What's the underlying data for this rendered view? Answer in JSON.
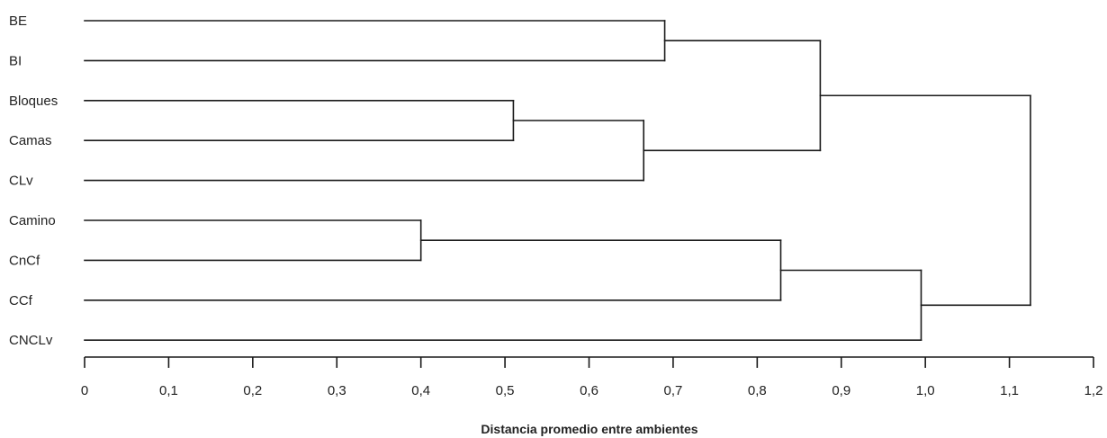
{
  "chart_data": {
    "type": "dendrogram",
    "xlabel": "Distancia promedio entre ambientes",
    "xlim": [
      0,
      1.2
    ],
    "x_ticks": [
      {
        "value": 0,
        "label": "0"
      },
      {
        "value": 0.1,
        "label": "0,1"
      },
      {
        "value": 0.2,
        "label": "0,2"
      },
      {
        "value": 0.3,
        "label": "0,3"
      },
      {
        "value": 0.4,
        "label": "0,4"
      },
      {
        "value": 0.5,
        "label": "0,5"
      },
      {
        "value": 0.6,
        "label": "0,6"
      },
      {
        "value": 0.7,
        "label": "0,7"
      },
      {
        "value": 0.8,
        "label": "0,8"
      },
      {
        "value": 0.9,
        "label": "0,9"
      },
      {
        "value": 1.0,
        "label": "1,0"
      },
      {
        "value": 1.1,
        "label": "1,1"
      },
      {
        "value": 1.2,
        "label": "1,2"
      }
    ],
    "leaves": [
      "BE",
      "BI",
      "Bloques",
      "Camas",
      "CLv",
      "Camino",
      "CnCf",
      "CCf",
      "CNCLv"
    ],
    "merges": [
      {
        "left": "Camino",
        "right": "CnCf",
        "height": 0.4
      },
      {
        "left": "Bloques",
        "right": "Camas",
        "height": 0.51
      },
      {
        "left": "Bloques+Camas",
        "right": "CLv",
        "height": 0.665
      },
      {
        "left": "BE",
        "right": "BI",
        "height": 0.69
      },
      {
        "left": "Camino+CnCf",
        "right": "CCf",
        "height": 0.828
      },
      {
        "left": "BE+BI",
        "right": "Bloques+Camas+CLv",
        "height": 0.875
      },
      {
        "left": "Camino+CnCf+CCf",
        "right": "CNCLv",
        "height": 0.995
      },
      {
        "left": "BE+BI+Bloques+Camas+CLv",
        "right": "Camino+CnCf+CCf+CNCLv",
        "height": 1.125
      }
    ],
    "colors": {
      "line": "#1a1a1a",
      "text": "#222222"
    }
  }
}
